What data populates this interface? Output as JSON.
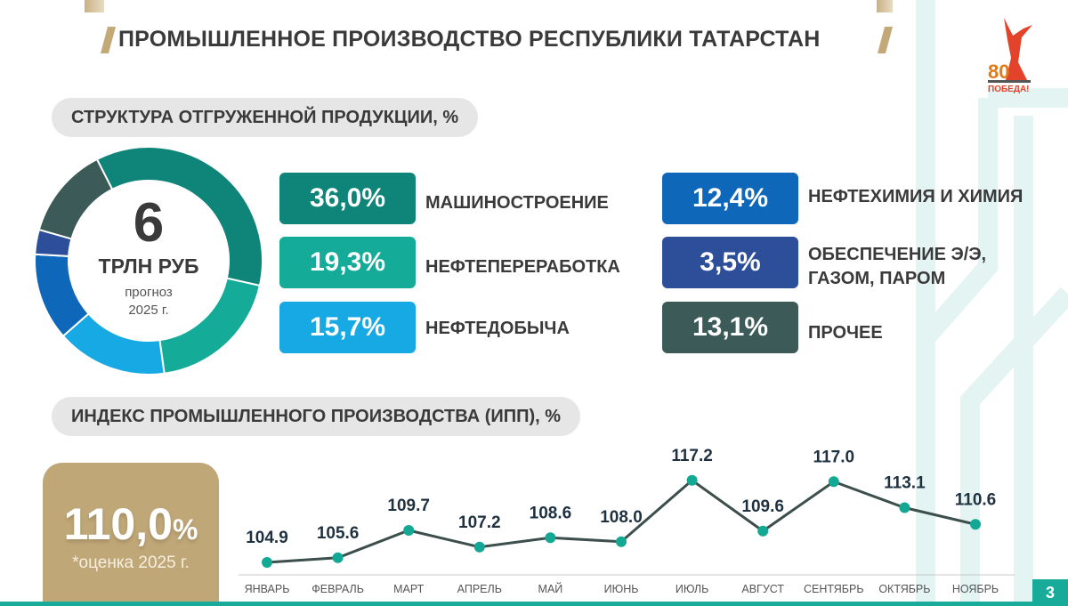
{
  "header": {
    "title": "ПРОМЫШЛЕННОЕ ПРОИЗВОДСТВО РЕСПУБЛИКИ ТАТАРСТАН",
    "logo_text": "80 ПОБЕДА!",
    "page_number": "3"
  },
  "structure": {
    "section_title": "СТРУКТУРА ОТГРУЖЕННОЙ ПРОДУКЦИИ, %",
    "center_value": "6",
    "center_unit": "ТРЛН РУБ",
    "center_note_1": "прогноз",
    "center_note_2": "2025 г.",
    "items": [
      {
        "value": "36,0%",
        "label": "МАШИНОСТРОЕНИЕ",
        "label2": "",
        "color": "#0f8478"
      },
      {
        "value": "19,3%",
        "label": "НЕФТЕПЕРЕРАБОТКА",
        "label2": "",
        "color": "#14ac98"
      },
      {
        "value": "15,7%",
        "label": "НЕФТЕДОБЫЧА",
        "label2": "",
        "color": "#17a9e4"
      },
      {
        "value": "12,4%",
        "label": "НЕФТЕХИМИЯ И ХИМИЯ",
        "label2": "",
        "color": "#0e67b8"
      },
      {
        "value": "3,5%",
        "label": "ОБЕСПЕЧЕНИЕ Э/Э,",
        "label2": "ГАЗОМ, ПАРОМ",
        "color": "#2d4f99"
      },
      {
        "value": "13,1%",
        "label": "ПРОЧЕЕ",
        "label2": "",
        "color": "#3c5a57"
      }
    ]
  },
  "ipp": {
    "section_title": "ИНДЕКС ПРОМЫШЛЕННОГО ПРОИЗВОДСТВА (ИПП), %",
    "total_value": "110,0",
    "total_unit": "%",
    "total_note": "*оценка 2025 г."
  },
  "chart_data": [
    {
      "type": "pie",
      "donut": true,
      "categories": [
        "МАШИНОСТРОЕНИЕ",
        "НЕФТЕПЕРЕРАБОТКА",
        "НЕФТЕДОБЫЧА",
        "НЕФТЕХИМИЯ И ХИМИЯ",
        "ОБЕСПЕЧЕНИЕ Э/Э, ГАЗОМ, ПАРОМ",
        "ПРОЧЕЕ"
      ],
      "values": [
        36.0,
        19.3,
        15.7,
        12.4,
        3.5,
        13.1
      ],
      "colors": [
        "#0f8478",
        "#14ac98",
        "#17a9e4",
        "#0e67b8",
        "#2d4f99",
        "#3c5a57"
      ]
    },
    {
      "type": "line",
      "categories": [
        "ЯНВАРЬ",
        "ФЕВРАЛЬ",
        "МАРТ",
        "АПРЕЛЬ",
        "МАЙ",
        "ИЮНЬ",
        "ИЮЛЬ",
        "АВГУСТ",
        "СЕНТЯБРЬ",
        "ОКТЯБРЬ",
        "НОЯБРЬ"
      ],
      "values": [
        104.9,
        105.6,
        109.7,
        107.2,
        108.6,
        108.0,
        117.2,
        109.6,
        117.0,
        113.1,
        110.6
      ],
      "data_labels": [
        "104.9",
        "105.6",
        "109.7",
        "107.2",
        "108.6",
        "108.0",
        "117.2",
        "109.6",
        "117.0",
        "113.1",
        "110.6"
      ],
      "line_color": "#3d4f4d",
      "marker_color": "#13a894",
      "grid": false
    }
  ]
}
